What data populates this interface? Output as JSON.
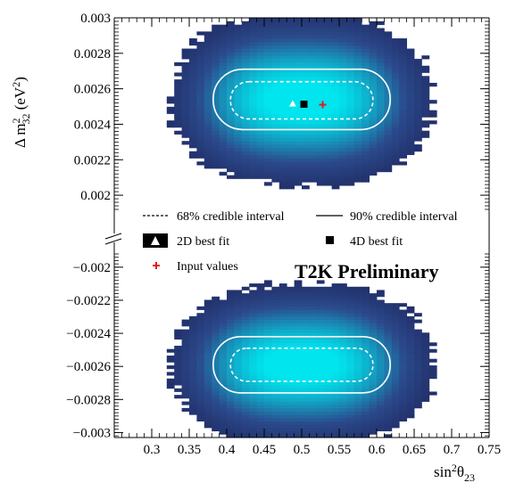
{
  "chart_data": {
    "type": "heatmap",
    "title": "",
    "watermark": "T2K Preliminary",
    "xlabel": {
      "base": "sin",
      "sup": "2",
      "sym": "θ",
      "sub": "23"
    },
    "ylabel": {
      "pre": "Δ m",
      "sup": "2",
      "sub": "32",
      "unit_pre": " (eV",
      "unit_sup": "2",
      "unit_post": ")"
    },
    "xlim": [
      0.25,
      0.75
    ],
    "x_ticks": [
      "0.3",
      "0.35",
      "0.4",
      "0.45",
      "0.5",
      "0.55",
      "0.6",
      "0.65",
      "0.7",
      "0.75"
    ],
    "y_ticks_upper": [
      "0.003",
      "0.0028",
      "0.0026",
      "0.0024",
      "0.0022",
      "0.002"
    ],
    "y_ticks_lower": [
      "−0.002",
      "−0.0022",
      "−0.0024",
      "−0.0026",
      "−0.0028",
      "−0.003"
    ],
    "panels": [
      {
        "name": "upper",
        "ylim": [
          0.00192,
          0.003
        ],
        "density": {
          "center_x": 0.5,
          "center_y": 0.00254,
          "sigma_x": 0.085,
          "sigma_y": 0.00019
        },
        "interval_68": {
          "center_x": 0.5,
          "center_y": 0.002535,
          "half_width_x": 0.095,
          "half_height_y": 0.000105
        },
        "interval_90": {
          "center_x": 0.5,
          "center_y": 0.00254,
          "half_width_x": 0.118,
          "half_height_y": 0.00017
        },
        "best_fit_2d": [
          0.488,
          0.002515
        ],
        "best_fit_4d": [
          0.503,
          0.002513
        ],
        "input_values": [
          0.528,
          0.00251
        ]
      },
      {
        "name": "lower",
        "ylim": [
          -0.00303,
          -0.00192
        ],
        "density": {
          "center_x": 0.5,
          "center_y": -0.00259,
          "sigma_x": 0.085,
          "sigma_y": 0.00019
        },
        "interval_68": {
          "center_x": 0.5,
          "center_y": -0.00259,
          "half_width_x": 0.095,
          "half_height_y": 0.0001
        },
        "interval_90": {
          "center_x": 0.5,
          "center_y": -0.00259,
          "half_width_x": 0.118,
          "half_height_y": 0.00017
        }
      }
    ],
    "colors": {
      "background_low": "#1a1a4e",
      "mid": "#2b4a8c",
      "high": "#00e5ee",
      "contour": "#ffffff",
      "input_marker": "#e41a1c"
    },
    "legend": [
      {
        "key": "interval_68",
        "label": "68% credible interval",
        "style": "dashed-line"
      },
      {
        "key": "interval_90",
        "label": "90% credible interval",
        "style": "solid-line"
      },
      {
        "key": "best_fit_2d",
        "label": "2D best fit",
        "style": "white-triangle"
      },
      {
        "key": "best_fit_4d",
        "label": "4D best fit",
        "style": "black-square"
      },
      {
        "key": "input_values",
        "label": "Input values",
        "style": "red-cross"
      }
    ]
  }
}
